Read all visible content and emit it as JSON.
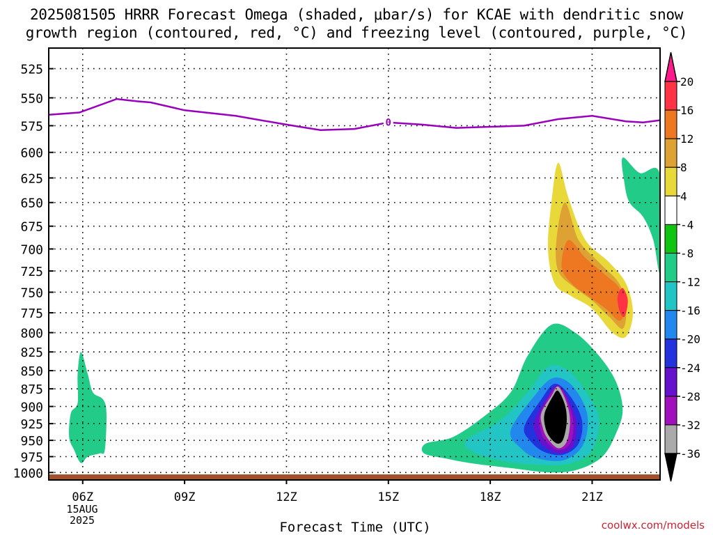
{
  "title": {
    "line1": "2025081505 HRRR Forecast Omega (shaded, μbar/s) for KCAE with dendritic snow",
    "line2": "growth region (contoured, red, °C) and freezing level (contoured, purple, °C)"
  },
  "credit": "coolwx.com/models",
  "chart_data": {
    "type": "heatmap",
    "xlabel": "Forecast Time (UTC)",
    "x_ticks": [
      "06Z",
      "09Z",
      "12Z",
      "15Z",
      "18Z",
      "21Z"
    ],
    "x_tick_hours": [
      6,
      9,
      12,
      15,
      18,
      21
    ],
    "x_date_label": [
      "15AUG",
      "2025"
    ],
    "xlim_hours": [
      5,
      23
    ],
    "y_ticks": [
      525,
      550,
      575,
      600,
      625,
      650,
      675,
      700,
      725,
      750,
      775,
      800,
      825,
      850,
      875,
      900,
      925,
      950,
      975,
      1000
    ],
    "ylim_hpa": [
      508,
      1012
    ],
    "y_scale": "log",
    "grid": true,
    "colorbar": {
      "labels": [
        "20",
        "16",
        "12",
        "8",
        "4",
        "-4",
        "-8",
        "-12",
        "-16",
        "-20",
        "-24",
        "-28",
        "-32",
        "-36"
      ],
      "colors": [
        "#ff1a8c",
        "#ff3344",
        "#ee7722",
        "#dda233",
        "#e8d83a",
        "#ffffff",
        "#11c411",
        "#22cc88",
        "#22c4c4",
        "#2288ee",
        "#2233dd",
        "#6611cc",
        "#a011bb",
        "#aaaaaa",
        "#000000"
      ]
    },
    "freezing_level": {
      "label": "0",
      "color": "#9900bb",
      "points": [
        [
          5,
          565
        ],
        [
          5.9,
          563
        ],
        [
          7.0,
          551
        ],
        [
          7.6,
          553
        ],
        [
          8.0,
          554
        ],
        [
          9.0,
          561
        ],
        [
          10.5,
          566
        ],
        [
          12.0,
          574
        ],
        [
          13.0,
          579
        ],
        [
          14.0,
          578
        ],
        [
          15.0,
          572
        ],
        [
          16.0,
          574
        ],
        [
          17.0,
          577
        ],
        [
          18.0,
          576
        ],
        [
          19.0,
          575
        ],
        [
          20.0,
          569
        ],
        [
          21.0,
          566
        ],
        [
          22.0,
          571
        ],
        [
          22.5,
          572
        ],
        [
          23.0,
          570
        ]
      ]
    },
    "omega_regions": [
      {
        "name": "updraft-col-07z",
        "level": "4",
        "pts": [
          [
            6.8,
            508
          ],
          [
            7.0,
            512
          ],
          [
            7.15,
            545
          ],
          [
            7.3,
            600
          ],
          [
            7.2,
            660
          ],
          [
            7.0,
            720
          ],
          [
            6.8,
            670
          ],
          [
            6.65,
            600
          ],
          [
            6.75,
            540
          ]
        ]
      },
      {
        "name": "updraft-col-11z",
        "level": "4",
        "pts": [
          [
            11.0,
            670
          ],
          [
            11.2,
            720
          ],
          [
            11.1,
            775
          ],
          [
            11.0,
            795
          ],
          [
            10.9,
            770
          ],
          [
            10.85,
            720
          ]
        ]
      },
      {
        "name": "updraft-col-09z",
        "level": "4",
        "pts": [
          [
            8.95,
            790
          ],
          [
            9.15,
            800
          ],
          [
            9.35,
            850
          ],
          [
            9.4,
            930
          ],
          [
            9.2,
            960
          ],
          [
            8.95,
            950
          ],
          [
            8.8,
            900
          ],
          [
            8.85,
            840
          ]
        ]
      },
      {
        "name": "downdraft-lower-06z",
        "level": "-8",
        "pts": [
          [
            5.95,
            825
          ],
          [
            6.15,
            855
          ],
          [
            6.3,
            880
          ],
          [
            6.6,
            890
          ],
          [
            6.7,
            910
          ],
          [
            6.65,
            965
          ],
          [
            6.5,
            970
          ],
          [
            6.15,
            975
          ],
          [
            5.95,
            985
          ],
          [
            5.75,
            965
          ],
          [
            5.6,
            945
          ],
          [
            5.65,
            910
          ],
          [
            5.85,
            895
          ],
          [
            5.85,
            855
          ]
        ]
      },
      {
        "name": "updraft-plume-20z",
        "level": "4",
        "pts": [
          [
            20.0,
            527
          ],
          [
            20.2,
            580
          ],
          [
            20.5,
            625
          ],
          [
            20.8,
            655
          ],
          [
            21.3,
            700
          ],
          [
            22.0,
            725
          ],
          [
            22.5,
            760
          ],
          [
            22.7,
            800
          ],
          [
            22.4,
            820
          ],
          [
            21.9,
            825
          ],
          [
            21.4,
            800
          ],
          [
            20.9,
            780
          ],
          [
            20.4,
            770
          ],
          [
            19.8,
            755
          ],
          [
            19.3,
            760
          ],
          [
            18.6,
            775
          ],
          [
            18.2,
            795
          ],
          [
            17.95,
            770
          ],
          [
            18.0,
            752
          ],
          [
            18.6,
            752
          ],
          [
            19.1,
            748
          ],
          [
            19.3,
            700
          ],
          [
            19.6,
            620
          ],
          [
            19.85,
            555
          ]
        ]
      },
      {
        "name": "updraft-plume-20z",
        "level": "8",
        "pts": [
          [
            20.0,
            610
          ],
          [
            20.3,
            645
          ],
          [
            20.8,
            690
          ],
          [
            21.5,
            715
          ],
          [
            22.0,
            740
          ],
          [
            22.2,
            775
          ],
          [
            22.0,
            805
          ],
          [
            21.6,
            800
          ],
          [
            21.0,
            770
          ],
          [
            20.4,
            755
          ],
          [
            19.9,
            740
          ],
          [
            19.7,
            700
          ],
          [
            19.8,
            650
          ]
        ]
      },
      {
        "name": "updraft-plume-20z",
        "level": "12",
        "pts": [
          [
            20.2,
            650
          ],
          [
            20.6,
            690
          ],
          [
            21.2,
            715
          ],
          [
            21.8,
            740
          ],
          [
            22.0,
            770
          ],
          [
            21.9,
            795
          ],
          [
            21.5,
            780
          ],
          [
            21.0,
            760
          ],
          [
            20.5,
            745
          ],
          [
            20.0,
            725
          ],
          [
            19.95,
            690
          ]
        ]
      },
      {
        "name": "updraft-plume-20z",
        "level": "16",
        "pts": [
          [
            20.3,
            690
          ],
          [
            20.8,
            710
          ],
          [
            21.4,
            730
          ],
          [
            21.8,
            745
          ],
          [
            21.95,
            770
          ],
          [
            21.8,
            785
          ],
          [
            21.4,
            770
          ],
          [
            20.9,
            755
          ],
          [
            20.4,
            740
          ],
          [
            20.1,
            720
          ]
        ]
      },
      {
        "name": "updraft-core-22z",
        "level": "20",
        "pts": [
          [
            21.9,
            745
          ],
          [
            22.05,
            760
          ],
          [
            21.95,
            780
          ],
          [
            21.8,
            772
          ],
          [
            21.75,
            755
          ]
        ]
      },
      {
        "name": "downdraft-right-edge",
        "level": "-8",
        "pts": [
          [
            21.9,
            605
          ],
          [
            22.4,
            620
          ],
          [
            23.0,
            622
          ],
          [
            23.0,
            725
          ],
          [
            22.8,
            690
          ],
          [
            22.5,
            665
          ],
          [
            22.1,
            650
          ],
          [
            21.95,
            630
          ]
        ]
      },
      {
        "name": "downdraft-main-20z",
        "level": "-8",
        "pts": [
          [
            16.1,
            955
          ],
          [
            16.9,
            945
          ],
          [
            17.8,
            915
          ],
          [
            18.6,
            880
          ],
          [
            19.1,
            830
          ],
          [
            19.8,
            790
          ],
          [
            20.5,
            800
          ],
          [
            21.2,
            830
          ],
          [
            21.7,
            865
          ],
          [
            21.9,
            905
          ],
          [
            21.7,
            940
          ],
          [
            21.3,
            975
          ],
          [
            20.6,
            995
          ],
          [
            19.8,
            1000
          ],
          [
            18.6,
            993
          ],
          [
            17.4,
            985
          ],
          [
            16.7,
            978
          ],
          [
            16.05,
            970
          ]
        ]
      },
      {
        "name": "downdraft-main-20z",
        "level": "-12",
        "pts": [
          [
            17.3,
            950
          ],
          [
            18.3,
            920
          ],
          [
            19.1,
            880
          ],
          [
            19.7,
            845
          ],
          [
            20.3,
            850
          ],
          [
            20.9,
            885
          ],
          [
            21.2,
            920
          ],
          [
            21.0,
            965
          ],
          [
            20.4,
            985
          ],
          [
            19.5,
            988
          ],
          [
            18.4,
            982
          ],
          [
            17.5,
            968
          ]
        ]
      },
      {
        "name": "downdraft-main-20z",
        "level": "-16",
        "pts": [
          [
            18.6,
            935
          ],
          [
            19.3,
            885
          ],
          [
            19.85,
            860
          ],
          [
            20.4,
            870
          ],
          [
            20.85,
            910
          ],
          [
            20.75,
            955
          ],
          [
            20.2,
            980
          ],
          [
            19.4,
            978
          ],
          [
            18.9,
            962
          ]
        ]
      },
      {
        "name": "downdraft-main-20z",
        "level": "-20",
        "pts": [
          [
            19.0,
            930
          ],
          [
            19.5,
            890
          ],
          [
            19.9,
            868
          ],
          [
            20.35,
            885
          ],
          [
            20.7,
            920
          ],
          [
            20.6,
            955
          ],
          [
            20.15,
            972
          ],
          [
            19.6,
            968
          ],
          [
            19.2,
            952
          ]
        ]
      },
      {
        "name": "downdraft-main-20z",
        "level": "-24",
        "pts": [
          [
            19.3,
            920
          ],
          [
            19.7,
            885
          ],
          [
            20.0,
            870
          ],
          [
            20.35,
            895
          ],
          [
            20.55,
            925
          ],
          [
            20.45,
            958
          ],
          [
            20.05,
            970
          ],
          [
            19.6,
            960
          ],
          [
            19.35,
            942
          ]
        ]
      },
      {
        "name": "downdraft-main-20z",
        "level": "-28",
        "pts": [
          [
            19.45,
            915
          ],
          [
            19.8,
            880
          ],
          [
            20.05,
            872
          ],
          [
            20.3,
            895
          ],
          [
            20.45,
            925
          ],
          [
            20.35,
            955
          ],
          [
            20.0,
            965
          ],
          [
            19.65,
            952
          ],
          [
            19.5,
            938
          ]
        ]
      },
      {
        "name": "downdraft-main-20z",
        "level": "-32",
        "pts": [
          [
            19.5,
            910
          ],
          [
            19.8,
            885
          ],
          [
            20.0,
            872
          ],
          [
            20.25,
            895
          ],
          [
            20.35,
            922
          ],
          [
            20.25,
            952
          ],
          [
            20.0,
            962
          ],
          [
            19.7,
            948
          ],
          [
            19.55,
            932
          ]
        ]
      },
      {
        "name": "downdraft-main-20z",
        "level": "-36",
        "pts": [
          [
            19.6,
            910
          ],
          [
            19.85,
            885
          ],
          [
            20.0,
            878
          ],
          [
            20.2,
            898
          ],
          [
            20.25,
            922
          ],
          [
            20.15,
            948
          ],
          [
            19.98,
            955
          ],
          [
            19.75,
            945
          ],
          [
            19.62,
            930
          ]
        ]
      }
    ]
  }
}
